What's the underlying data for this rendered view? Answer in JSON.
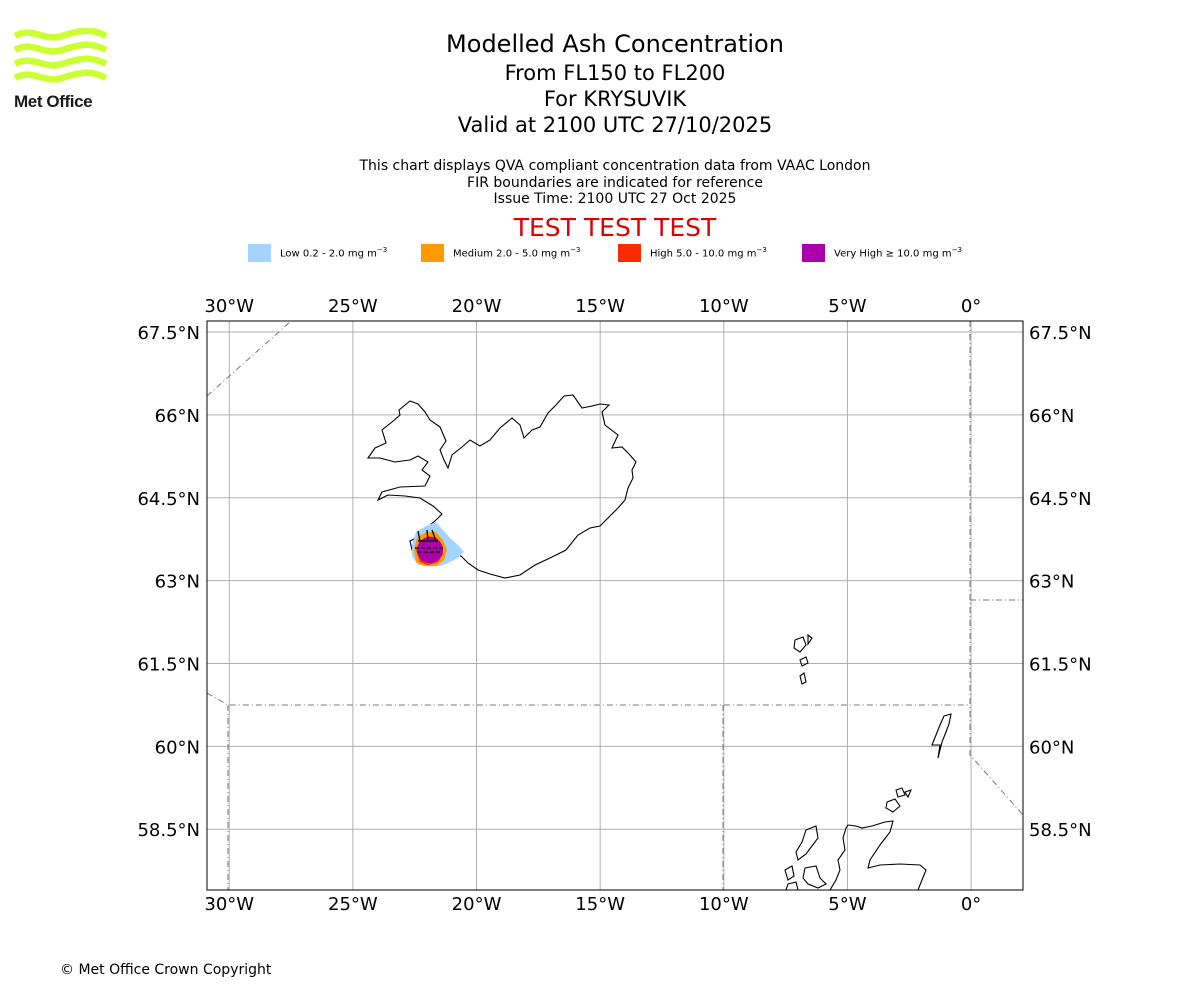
{
  "logo": {
    "text": "Met Office",
    "color": "#ccff33"
  },
  "header": {
    "title": "Modelled Ash Concentration",
    "levels": "From FL150 to FL200",
    "volcano": "For KRYSUVIK",
    "valid": "Valid at 2100 UTC 27/10/2025"
  },
  "subtitle": {
    "line1": "This chart displays QVA compliant concentration data from VAAC London",
    "line2": "FIR boundaries are indicated for reference",
    "line3": "Issue Time: 2100 UTC 27 Oct 2025"
  },
  "test_banner": "TEST TEST TEST",
  "legend": [
    {
      "label": "Low 0.2 - 2.0 mg m",
      "unit_sup": "−3",
      "color": "#a3d4ff"
    },
    {
      "label": "Medium 2.0 - 5.0 mg m",
      "unit_sup": "−3",
      "color": "#ff9900"
    },
    {
      "label": "High 5.0 - 10.0 mg m",
      "unit_sup": "−3",
      "color": "#ff2a00"
    },
    {
      "label": "Very High  ≥  10.0 mg m",
      "unit_sup": "−3",
      "color": "#aa00aa"
    }
  ],
  "map": {
    "lon_ticks": [
      -30,
      -25,
      -20,
      -15,
      -10,
      -5,
      0
    ],
    "lon_labels": [
      "30°W",
      "25°W",
      "20°W",
      "15°W",
      "10°W",
      "5°W",
      "0°"
    ],
    "lat_ticks": [
      67.5,
      66,
      64.5,
      63,
      61.5,
      60,
      58.5
    ],
    "lat_labels": [
      "67.5°N",
      "66°N",
      "64.5°N",
      "63°N",
      "61.5°N",
      "60°N",
      "58.5°N"
    ],
    "extent": {
      "lon_min": -30.9,
      "lon_max": 2.1,
      "lat_min": 57.4,
      "lat_max": 67.7
    },
    "volcano_location": {
      "lon": -22.0,
      "lat": 63.9
    }
  },
  "copyright": "© Met Office Crown Copyright"
}
